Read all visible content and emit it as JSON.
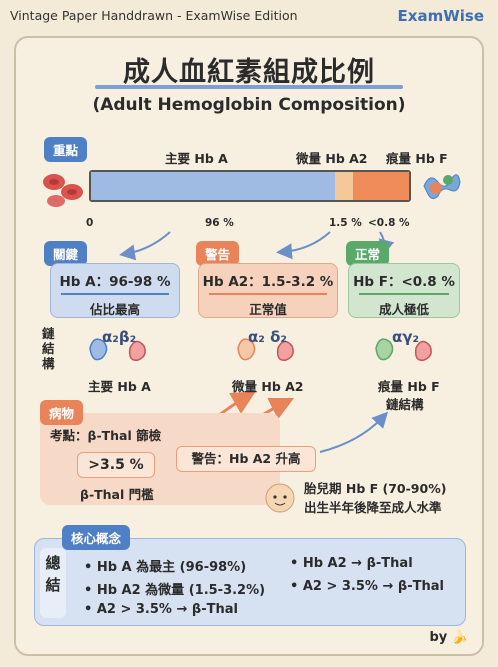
{
  "header": {
    "left": "Vintage Paper Handdrawn - ExamWise Edition",
    "brand": "ExamWise"
  },
  "title": "成人血紅素組成比例",
  "subtitle": "(Adult Hemoglobin Composition)",
  "key_tag": "重點",
  "bar_labels": {
    "a": "主要 Hb A",
    "a2": "微量 Hb A2",
    "f": "痕量 Hb F"
  },
  "ticks": {
    "zero": "0",
    "a": "96 %",
    "a2": "1.5 %",
    "f": "<0.8 %"
  },
  "proportions": {
    "a": 96,
    "a2": 1.5,
    "f": 0.8
  },
  "cards": [
    {
      "tag": "關鍵",
      "value": "Hb A：96-98 %",
      "desc": "佔比最高"
    },
    {
      "tag": "警告",
      "value": "Hb A2：1.5-3.2 %",
      "desc": "正常值"
    },
    {
      "tag": "正常",
      "value": "Hb F：<0.8 %",
      "desc": "成人極低"
    }
  ],
  "chain_label": [
    "鏈",
    "結",
    "構"
  ],
  "molecules": [
    {
      "chains": "α₂β₂",
      "label": "主要 Hb A"
    },
    {
      "chains": "α₂ δ₂",
      "label": "微量 Hb A2"
    },
    {
      "chains": "αγ₂",
      "label": "痕量 Hb F",
      "label2": "鏈結構"
    }
  ],
  "pathology": {
    "tag": "病物",
    "exam": "考點：β-Thal 篩檢",
    "threshold": ">3.5 %",
    "threshold_label": "β-Thal 門檻",
    "warning": "警告：Hb A2 升高",
    "fetal1": "胎兒期 Hb F (70-90%)",
    "fetal2": "出生半年後降至成人水準"
  },
  "summary": {
    "tag": "核心概念",
    "side": [
      "總",
      "結"
    ],
    "items": [
      "• Hb A 為最主 (96-98%)",
      "• Hb A2 → β-Thal",
      "• Hb A2 為微量 (1.5-3.2%)",
      "• A2 > 3.5% → β-Thal",
      "• A2 > 3.5% → β-Thal"
    ]
  },
  "by": "by",
  "colors": {
    "blue": "#4f7fc4",
    "orange": "#e9835a",
    "green": "#5aa86a",
    "paper": "#f3ead7"
  }
}
